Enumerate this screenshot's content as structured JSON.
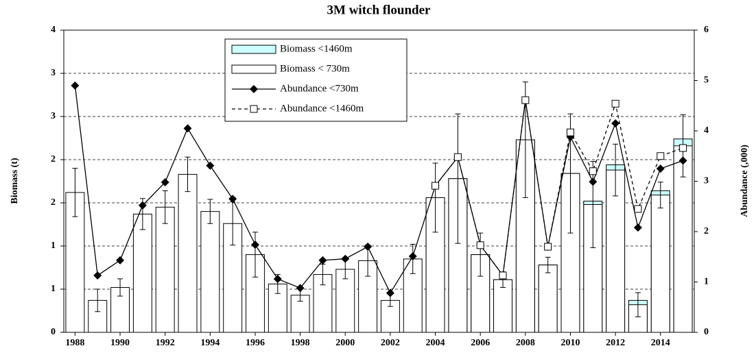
{
  "chart_data": {
    "type": "combo",
    "title": "3M witch flounder",
    "y_label": "Biomass (t)",
    "y2_label": "Abundance  (,000)",
    "x": [
      1988,
      1989,
      1990,
      1991,
      1992,
      1993,
      1994,
      1995,
      1996,
      1997,
      1998,
      1999,
      2000,
      2001,
      2002,
      2003,
      2004,
      2005,
      2006,
      2007,
      2008,
      2009,
      2010,
      2011,
      2012,
      2013,
      2014,
      2015
    ],
    "xlim": [
      1987.5,
      2015.5
    ],
    "xticks": [
      1988,
      1990,
      1992,
      1994,
      1996,
      1998,
      2000,
      2002,
      2004,
      2006,
      2008,
      2010,
      2012,
      2014
    ],
    "ylim": [
      0,
      3.5
    ],
    "yticks": [
      0,
      {
        "value": 0.5,
        "label": "1"
      },
      {
        "value": 1,
        "label": "1"
      },
      {
        "value": 1.5,
        "label": "2"
      },
      {
        "value": 2,
        "label": "2"
      },
      {
        "value": 2.5,
        "label": "3"
      },
      {
        "value": 3,
        "label": "3"
      },
      {
        "value": 3.5,
        "label": "4"
      }
    ],
    "y2lim": [
      0,
      6
    ],
    "y2ticks": [
      0,
      1,
      2,
      3,
      4,
      5,
      6
    ],
    "grid": true,
    "series": [
      {
        "name": "Biomass <1460m",
        "type": "bar",
        "color": "#ccffff",
        "values": [
          null,
          null,
          null,
          null,
          null,
          null,
          null,
          null,
          null,
          null,
          null,
          null,
          null,
          null,
          null,
          null,
          1.56,
          1.78,
          0.9,
          0.61,
          2.23,
          0.78,
          1.84,
          1.52,
          1.94,
          0.37,
          1.64,
          2.24
        ]
      },
      {
        "name": "Biomass < 730m",
        "type": "bar",
        "color": "#ffffff",
        "values": [
          1.62,
          0.37,
          0.52,
          1.37,
          1.45,
          1.83,
          1.4,
          1.26,
          0.9,
          0.56,
          0.43,
          0.67,
          0.73,
          0.83,
          0.37,
          0.85,
          1.56,
          1.78,
          0.9,
          0.61,
          2.23,
          0.78,
          1.84,
          1.48,
          1.88,
          0.32,
          1.59,
          2.16
        ],
        "errors": [
          0.28,
          0.13,
          0.1,
          0.18,
          0.19,
          0.2,
          0.14,
          0.25,
          0.26,
          0.11,
          0.07,
          0.12,
          0.11,
          0.18,
          0.07,
          0.17,
          0.4,
          0.75,
          0.25,
          0.09,
          0.67,
          0.09,
          0.69,
          0.5,
          0.3,
          0.14,
          0.15,
          0.36
        ]
      },
      {
        "name": "Abundance <730m",
        "type": "line",
        "axis": "y2",
        "color": "#000000",
        "marker": "diamond",
        "dashed": false,
        "values": [
          4.9,
          1.13,
          1.43,
          2.52,
          2.98,
          4.05,
          3.31,
          2.65,
          1.74,
          1.06,
          0.88,
          1.43,
          1.46,
          1.7,
          0.78,
          1.51,
          2.91,
          3.48,
          1.73,
          1.13,
          4.61,
          1.7,
          3.88,
          2.99,
          4.15,
          2.08,
          3.25,
          3.41
        ]
      },
      {
        "name": "Abundance <1460m",
        "type": "line",
        "axis": "y2",
        "color": "#000000",
        "marker": "square",
        "dashed": true,
        "values": [
          null,
          null,
          null,
          null,
          null,
          null,
          null,
          null,
          null,
          null,
          null,
          null,
          null,
          null,
          null,
          null,
          2.91,
          3.48,
          1.73,
          1.13,
          4.61,
          1.7,
          3.97,
          3.2,
          4.54,
          2.45,
          3.5,
          3.66
        ]
      }
    ]
  }
}
